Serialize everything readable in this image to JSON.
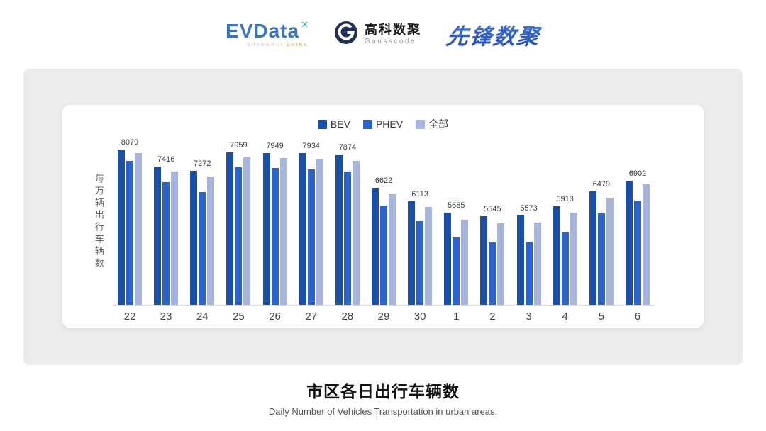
{
  "header": {
    "evdata": {
      "text": "EVData",
      "mark": "✕",
      "sub_left": "SHANGHAI ",
      "sub_right": "CHINA"
    },
    "gausscode": {
      "cn": "高科数聚",
      "en": "Gausscode"
    },
    "xianfeng": {
      "text": "先锋数聚"
    }
  },
  "chart_data": {
    "type": "bar",
    "title": "市区各日出行车辆数",
    "subtitle": "Daily Number of Vehicles Transportation in urban areas.",
    "ylabel": "每万辆出行车辆数",
    "xlabel": "",
    "categories": [
      "22",
      "23",
      "24",
      "25",
      "26",
      "27",
      "28",
      "29",
      "30",
      "1",
      "2",
      "3",
      "4",
      "5",
      "6"
    ],
    "series": [
      {
        "name": "BEV",
        "color": "#1a4fa5",
        "values": [
          8079,
          7416,
          7272,
          7959,
          7949,
          7934,
          7874,
          6622,
          6113,
          5685,
          5545,
          5573,
          5913,
          6479,
          6902
        ],
        "labels_shown": true
      },
      {
        "name": "PHEV",
        "color": "#2b62cc",
        "values": [
          7650,
          6850,
          6450,
          7400,
          7380,
          7320,
          7240,
          5950,
          5350,
          4750,
          4550,
          4580,
          4950,
          5650,
          6150
        ],
        "labels_shown": false
      },
      {
        "name": "全部",
        "color": "#a7b5dd",
        "values": [
          7930,
          7230,
          7040,
          7780,
          7760,
          7730,
          7650,
          6400,
          5890,
          5430,
          5290,
          5320,
          5690,
          6250,
          6760
        ],
        "labels_shown": false
      }
    ],
    "bar_labels": [
      8079,
      7416,
      7272,
      7959,
      7949,
      7934,
      7874,
      6622,
      6113,
      5685,
      5545,
      5573,
      5913,
      6479,
      6902
    ],
    "ylim": [
      2200,
      8500
    ],
    "grid": false,
    "legend_position": "top"
  }
}
